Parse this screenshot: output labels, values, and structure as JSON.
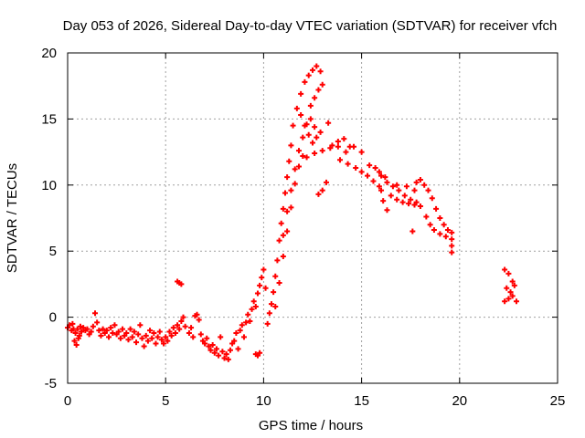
{
  "colors": {
    "series": "#ff0000",
    "grid": "#a0a0a0",
    "axis": "#000000",
    "background": "#ffffff"
  },
  "chart_data": {
    "type": "scatter",
    "title": "Day 053 of 2026, Sidereal Day-to-day VTEC variation (SDTVAR) for receiver vfch",
    "xlabel": "GPS time / hours",
    "ylabel": "SDTVAR / TECUs",
    "xlim": [
      0,
      25
    ],
    "ylim": [
      -5,
      20
    ],
    "xticks": [
      0,
      5,
      10,
      15,
      20,
      25
    ],
    "yticks": [
      -5,
      0,
      5,
      10,
      15,
      20
    ],
    "grid": true,
    "marker": "plus",
    "series": [
      {
        "name": "SDTVAR",
        "points": [
          [
            0.0,
            -0.8
          ],
          [
            0.1,
            -0.6
          ],
          [
            0.2,
            -1.0
          ],
          [
            0.3,
            -0.9
          ],
          [
            0.4,
            -1.2
          ],
          [
            0.5,
            -0.9
          ],
          [
            0.6,
            -1.4
          ],
          [
            0.7,
            -1.1
          ],
          [
            0.8,
            -0.8
          ],
          [
            0.9,
            -1.0
          ],
          [
            0.35,
            -1.8
          ],
          [
            0.45,
            -2.1
          ],
          [
            0.55,
            -1.6
          ],
          [
            0.25,
            -0.5
          ],
          [
            0.65,
            -0.7
          ],
          [
            1.0,
            -0.9
          ],
          [
            1.1,
            -1.3
          ],
          [
            1.2,
            -1.1
          ],
          [
            1.3,
            -0.7
          ],
          [
            1.4,
            0.3
          ],
          [
            1.5,
            -0.4
          ],
          [
            1.6,
            -1.0
          ],
          [
            1.7,
            -1.4
          ],
          [
            1.8,
            -0.9
          ],
          [
            1.9,
            -1.2
          ],
          [
            2.0,
            -1.0
          ],
          [
            2.1,
            -1.5
          ],
          [
            2.2,
            -0.8
          ],
          [
            2.3,
            -1.2
          ],
          [
            2.4,
            -0.6
          ],
          [
            2.5,
            -1.3
          ],
          [
            2.6,
            -1.1
          ],
          [
            2.7,
            -1.6
          ],
          [
            2.8,
            -0.9
          ],
          [
            2.9,
            -1.4
          ],
          [
            3.0,
            -1.2
          ],
          [
            3.1,
            -1.7
          ],
          [
            3.2,
            -0.9
          ],
          [
            3.3,
            -1.5
          ],
          [
            3.4,
            -1.1
          ],
          [
            3.5,
            -1.9
          ],
          [
            3.6,
            -1.3
          ],
          [
            3.7,
            -0.6
          ],
          [
            3.8,
            -1.6
          ],
          [
            3.9,
            -2.2
          ],
          [
            4.0,
            -1.4
          ],
          [
            4.1,
            -1.8
          ],
          [
            4.2,
            -1.0
          ],
          [
            4.3,
            -1.6
          ],
          [
            4.4,
            -1.2
          ],
          [
            4.5,
            -2.0
          ],
          [
            4.6,
            -1.5
          ],
          [
            4.7,
            -1.1
          ],
          [
            4.8,
            -1.7
          ],
          [
            4.9,
            -2.0
          ],
          [
            5.0,
            -1.5
          ],
          [
            5.1,
            -1.8
          ],
          [
            5.2,
            -1.1
          ],
          [
            5.3,
            -1.4
          ],
          [
            5.4,
            -0.8
          ],
          [
            5.5,
            -1.2
          ],
          [
            5.6,
            -0.6
          ],
          [
            5.7,
            -0.9
          ],
          [
            5.8,
            -0.3
          ],
          [
            5.9,
            0.0
          ],
          [
            5.6,
            2.7
          ],
          [
            5.7,
            2.6
          ],
          [
            5.8,
            2.5
          ],
          [
            6.0,
            -0.7
          ],
          [
            6.2,
            -1.2
          ],
          [
            6.3,
            -0.8
          ],
          [
            6.4,
            -1.5
          ],
          [
            6.5,
            0.1
          ],
          [
            6.6,
            0.2
          ],
          [
            6.7,
            -0.2
          ],
          [
            6.8,
            -1.3
          ],
          [
            6.9,
            -1.8
          ],
          [
            7.0,
            -2.0
          ],
          [
            7.1,
            -1.6
          ],
          [
            7.2,
            -2.2
          ],
          [
            7.3,
            -2.5
          ],
          [
            7.4,
            -2.1
          ],
          [
            7.5,
            -2.7
          ],
          [
            7.6,
            -2.4
          ],
          [
            7.7,
            -2.9
          ],
          [
            7.8,
            -1.5
          ],
          [
            7.9,
            -2.6
          ],
          [
            8.0,
            -3.1
          ],
          [
            8.1,
            -2.8
          ],
          [
            8.2,
            -3.2
          ],
          [
            8.3,
            -2.5
          ],
          [
            8.4,
            -2.0
          ],
          [
            8.5,
            -1.8
          ],
          [
            8.6,
            -1.2
          ],
          [
            8.7,
            -2.4
          ],
          [
            8.8,
            -1.0
          ],
          [
            8.9,
            -0.6
          ],
          [
            9.0,
            -1.5
          ],
          [
            9.1,
            -0.4
          ],
          [
            9.2,
            0.2
          ],
          [
            9.3,
            -0.3
          ],
          [
            9.4,
            0.6
          ],
          [
            9.5,
            1.2
          ],
          [
            9.6,
            -2.8
          ],
          [
            9.7,
            -2.9
          ],
          [
            9.8,
            -2.7
          ],
          [
            9.6,
            0.8
          ],
          [
            9.7,
            1.8
          ],
          [
            9.8,
            2.4
          ],
          [
            9.9,
            3.0
          ],
          [
            10.0,
            3.6
          ],
          [
            10.1,
            2.2
          ],
          [
            10.2,
            -0.5
          ],
          [
            10.3,
            0.3
          ],
          [
            10.4,
            1.0
          ],
          [
            10.5,
            1.9
          ],
          [
            10.6,
            3.1
          ],
          [
            10.7,
            4.3
          ],
          [
            10.8,
            5.8
          ],
          [
            10.9,
            7.1
          ],
          [
            11.0,
            8.2
          ],
          [
            11.1,
            9.4
          ],
          [
            11.2,
            10.6
          ],
          [
            11.3,
            11.8
          ],
          [
            11.4,
            13.0
          ],
          [
            10.6,
            0.8
          ],
          [
            10.8,
            2.6
          ],
          [
            11.0,
            4.6
          ],
          [
            11.2,
            6.5
          ],
          [
            11.4,
            8.3
          ],
          [
            11.6,
            10.1
          ],
          [
            11.8,
            11.4
          ],
          [
            12.0,
            12.2
          ],
          [
            11.0,
            6.2
          ],
          [
            11.2,
            8.0
          ],
          [
            11.4,
            9.6
          ],
          [
            11.6,
            11.2
          ],
          [
            11.8,
            12.6
          ],
          [
            12.0,
            13.6
          ],
          [
            12.2,
            14.6
          ],
          [
            12.4,
            15.0
          ],
          [
            12.6,
            14.4
          ],
          [
            11.5,
            14.5
          ],
          [
            11.7,
            15.8
          ],
          [
            11.9,
            16.9
          ],
          [
            12.1,
            17.8
          ],
          [
            12.3,
            18.3
          ],
          [
            12.5,
            18.7
          ],
          [
            12.7,
            19.0
          ],
          [
            12.9,
            18.6
          ],
          [
            12.4,
            16.0
          ],
          [
            12.6,
            16.6
          ],
          [
            12.8,
            17.2
          ],
          [
            13.0,
            17.6
          ],
          [
            11.9,
            15.3
          ],
          [
            12.1,
            14.5
          ],
          [
            12.3,
            13.8
          ],
          [
            12.5,
            13.2
          ],
          [
            12.7,
            13.6
          ],
          [
            12.9,
            14.0
          ],
          [
            13.2,
            10.2
          ],
          [
            13.0,
            9.6
          ],
          [
            12.8,
            9.3
          ],
          [
            13.3,
            14.7
          ],
          [
            12.2,
            12.1
          ],
          [
            12.6,
            12.4
          ],
          [
            13.0,
            12.6
          ],
          [
            13.4,
            12.8
          ],
          [
            13.8,
            12.9
          ],
          [
            14.2,
            12.5
          ],
          [
            14.6,
            12.9
          ],
          [
            15.0,
            12.5
          ],
          [
            13.5,
            13.0
          ],
          [
            13.8,
            13.3
          ],
          [
            14.1,
            13.5
          ],
          [
            14.4,
            12.9
          ],
          [
            13.9,
            11.9
          ],
          [
            14.3,
            11.6
          ],
          [
            14.7,
            11.3
          ],
          [
            15.0,
            11.0
          ],
          [
            15.3,
            10.7
          ],
          [
            15.6,
            10.3
          ],
          [
            15.9,
            9.9
          ],
          [
            15.4,
            11.5
          ],
          [
            15.7,
            11.3
          ],
          [
            15.9,
            11.0
          ],
          [
            16.0,
            9.6
          ],
          [
            16.1,
            8.8
          ],
          [
            16.3,
            8.1
          ],
          [
            16.0,
            10.7
          ],
          [
            16.3,
            10.2
          ],
          [
            16.6,
            9.9
          ],
          [
            16.9,
            9.6
          ],
          [
            17.2,
            9.2
          ],
          [
            17.5,
            8.9
          ],
          [
            17.8,
            8.7
          ],
          [
            16.5,
            9.2
          ],
          [
            16.8,
            8.9
          ],
          [
            17.1,
            8.7
          ],
          [
            17.4,
            8.6
          ],
          [
            17.7,
            8.5
          ],
          [
            18.0,
            8.4
          ],
          [
            16.2,
            10.6
          ],
          [
            16.8,
            10.0
          ],
          [
            17.3,
            9.9
          ],
          [
            17.7,
            9.6
          ],
          [
            17.8,
            10.2
          ],
          [
            18.0,
            10.4
          ],
          [
            18.2,
            10.0
          ],
          [
            18.4,
            9.6
          ],
          [
            18.6,
            9.0
          ],
          [
            18.8,
            8.2
          ],
          [
            19.0,
            7.5
          ],
          [
            19.2,
            7.0
          ],
          [
            19.4,
            6.6
          ],
          [
            19.6,
            6.4
          ],
          [
            18.3,
            7.6
          ],
          [
            18.5,
            7.0
          ],
          [
            18.7,
            6.6
          ],
          [
            19.0,
            6.3
          ],
          [
            19.3,
            6.1
          ],
          [
            19.6,
            5.9
          ],
          [
            19.6,
            5.4
          ],
          [
            19.6,
            4.9
          ],
          [
            17.6,
            6.5
          ],
          [
            22.3,
            3.6
          ],
          [
            22.5,
            3.3
          ],
          [
            22.7,
            2.7
          ],
          [
            22.8,
            2.4
          ],
          [
            22.4,
            2.2
          ],
          [
            22.6,
            1.9
          ],
          [
            22.3,
            1.2
          ],
          [
            22.5,
            1.4
          ],
          [
            22.7,
            1.6
          ],
          [
            22.9,
            1.2
          ]
        ]
      }
    ]
  }
}
